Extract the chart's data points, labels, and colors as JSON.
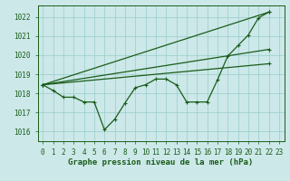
{
  "title": "Graphe pression niveau de la mer (hPa)",
  "bg_color": "#cce8e8",
  "grid_color": "#99cccc",
  "line_color": "#1a5c1a",
  "x_ticks": [
    0,
    1,
    2,
    3,
    4,
    5,
    6,
    7,
    8,
    9,
    10,
    11,
    12,
    13,
    14,
    15,
    16,
    17,
    18,
    19,
    20,
    21,
    22,
    23
  ],
  "ylim": [
    1015.5,
    1022.6
  ],
  "y_ticks": [
    1016,
    1017,
    1018,
    1019,
    1020,
    1021,
    1022
  ],
  "wiggly": [
    1018.45,
    1018.15,
    1017.8,
    1017.8,
    1017.55,
    1017.55,
    1016.1,
    1016.65,
    1017.5,
    1018.3,
    1018.45,
    1018.75,
    1018.75,
    1018.45,
    1017.55,
    1017.55,
    1017.55,
    1018.7,
    1019.95,
    1020.5,
    1021.05,
    1021.95,
    1022.25
  ],
  "straight_lines": [
    {
      "x0": 0,
      "y0": 1018.45,
      "x1": 22,
      "y1": 1019.55
    },
    {
      "x0": 0,
      "y0": 1018.45,
      "x1": 22,
      "y1": 1020.3
    },
    {
      "x0": 0,
      "y0": 1018.45,
      "x1": 22,
      "y1": 1022.25
    }
  ],
  "marker_size": 2.2,
  "linewidth": 0.9,
  "font_size_label": 6.5,
  "font_size_tick": 5.5
}
